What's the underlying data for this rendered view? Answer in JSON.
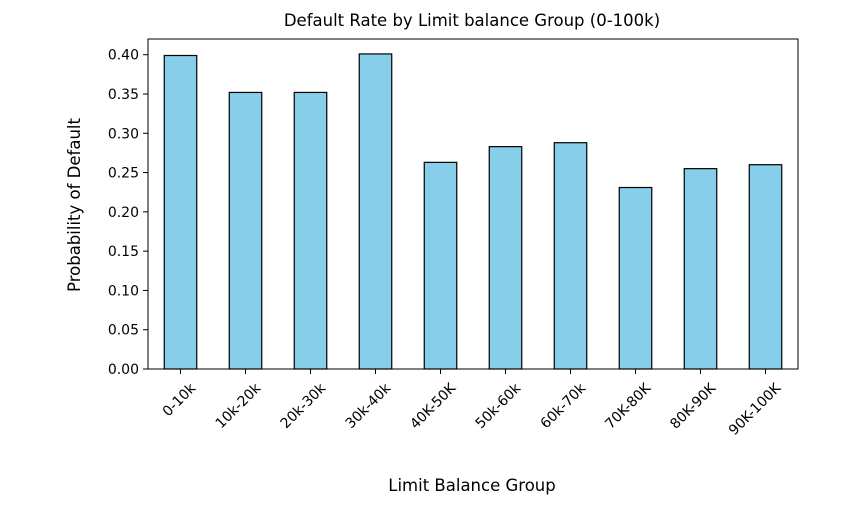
{
  "chart_data": {
    "type": "bar",
    "title": "Default Rate by Limit balance Group (0-100k)",
    "xlabel": "Limit Balance Group",
    "ylabel": "Probability of Default",
    "categories": [
      "0-10k",
      "10k-20k",
      "20k-30k",
      "30k-40k",
      "40K-50K",
      "50k-60k",
      "60k-70k",
      "70K-80K",
      "80K-90K",
      "90K-100K"
    ],
    "values": [
      0.399,
      0.352,
      0.352,
      0.401,
      0.263,
      0.283,
      0.288,
      0.231,
      0.255,
      0.26
    ],
    "ylim": [
      0,
      0.42
    ],
    "yticks": [
      0.0,
      0.05,
      0.1,
      0.15,
      0.2,
      0.25,
      0.3,
      0.35,
      0.4
    ],
    "ytick_labels": [
      "0.00",
      "0.05",
      "0.10",
      "0.15",
      "0.20",
      "0.25",
      "0.30",
      "0.35",
      "0.40"
    ],
    "grid": false,
    "bar_color": "#87CEEB",
    "edge_color": "#000000"
  }
}
